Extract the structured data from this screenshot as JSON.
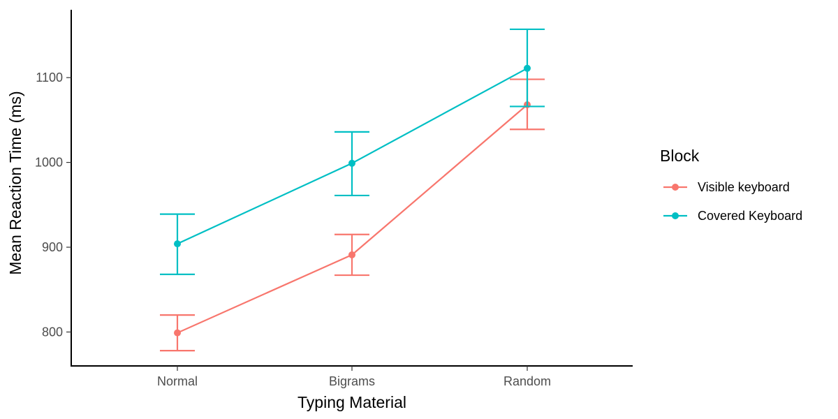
{
  "chart_data": {
    "type": "line",
    "title": "",
    "xlabel": "Typing Material",
    "ylabel": "Mean Reaction Time (ms)",
    "categories": [
      "Normal",
      "Bigrams",
      "Random"
    ],
    "ylim": [
      760,
      1180
    ],
    "yticks": [
      800,
      900,
      1000,
      1100
    ],
    "grid": false,
    "legend": {
      "title": "Block",
      "placement": "right"
    },
    "series": [
      {
        "name": "Visible keyboard",
        "color": "#F8766D",
        "values": [
          799,
          891,
          1068
        ],
        "error_low": [
          778,
          867,
          1039
        ],
        "error_high": [
          820,
          915,
          1098
        ]
      },
      {
        "name": "Covered Keyboard",
        "color": "#00BFC4",
        "values": [
          904,
          999,
          1111
        ],
        "error_low": [
          868,
          961,
          1066
        ],
        "error_high": [
          939,
          1036,
          1157
        ]
      }
    ]
  }
}
